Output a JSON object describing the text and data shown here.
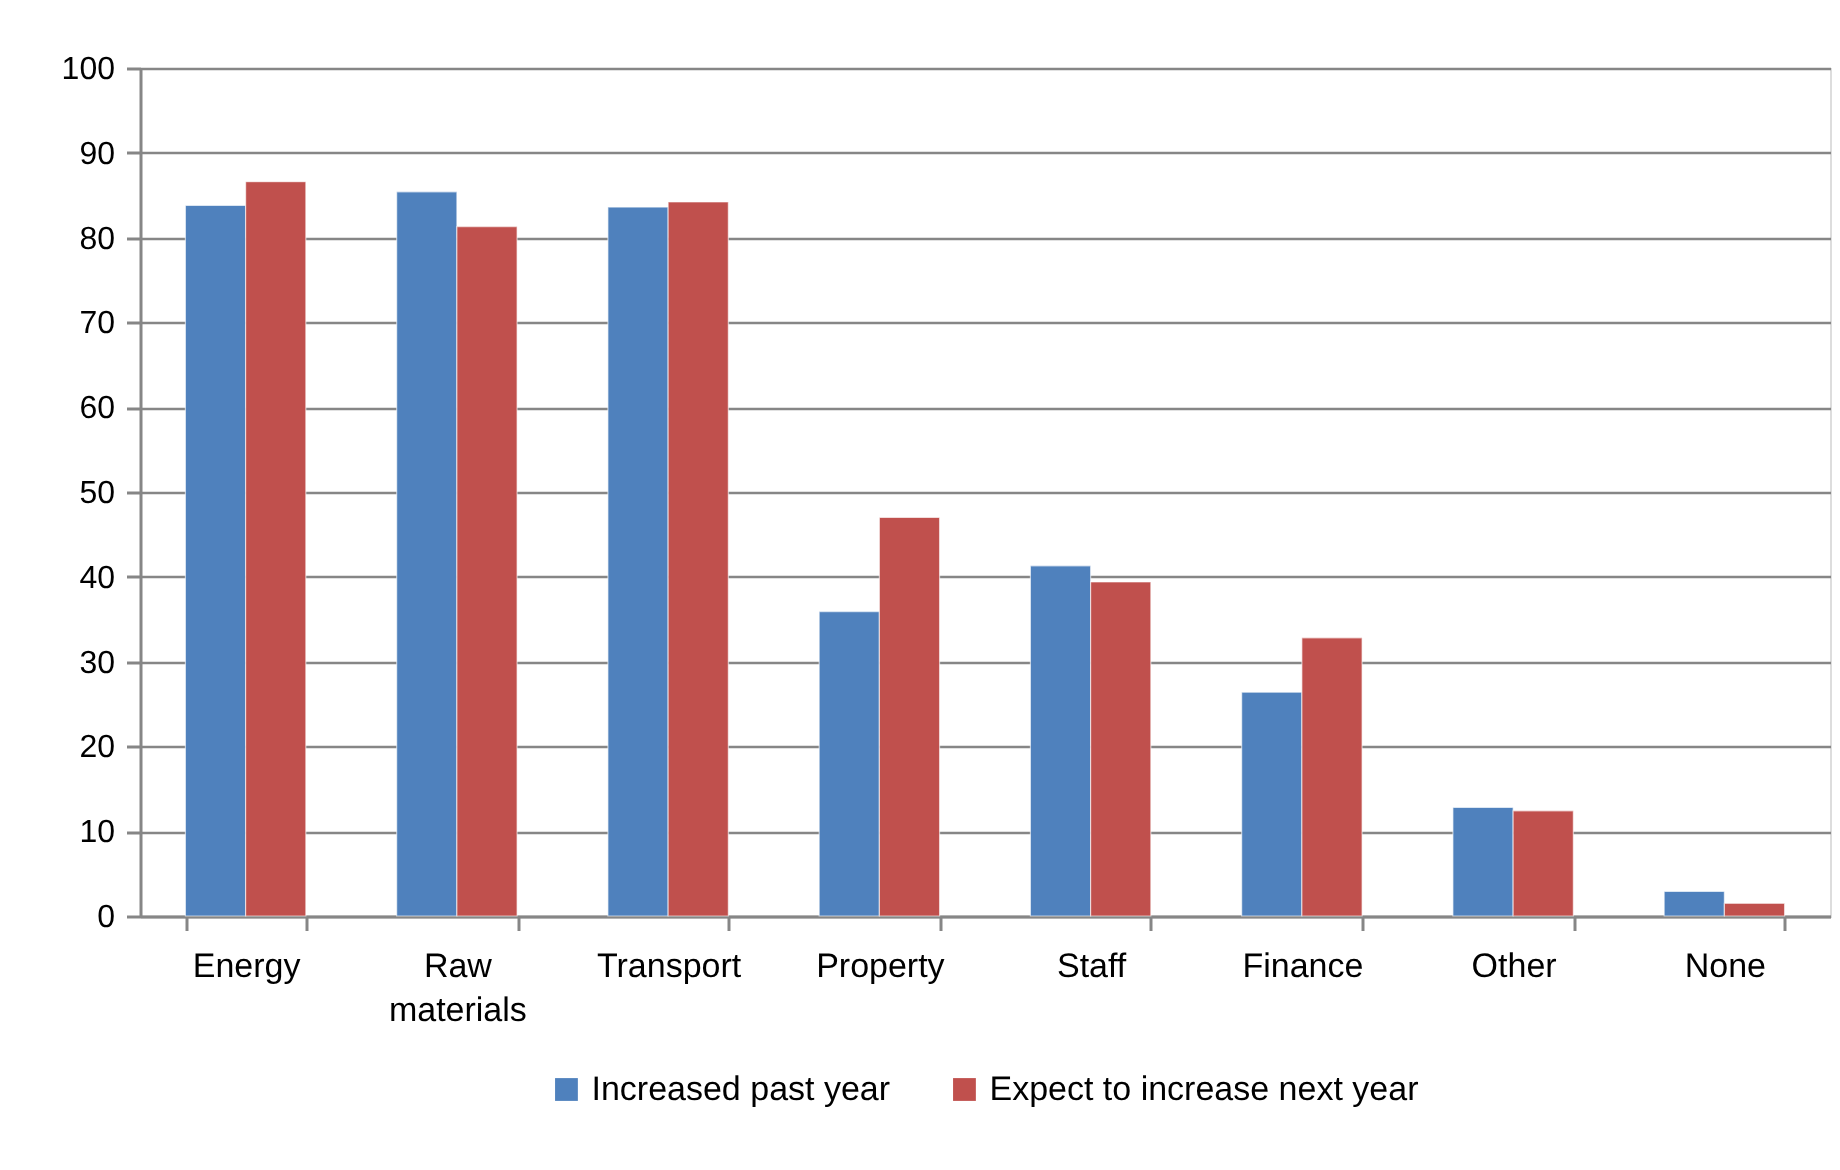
{
  "chart_data": {
    "type": "bar",
    "categories": [
      "Energy",
      "Raw materials",
      "Transport",
      "Property",
      "Staff",
      "Finance",
      "Other",
      "None"
    ],
    "series": [
      {
        "name": "Increased past year",
        "color": "#4f81bd",
        "values": [
          83.8,
          85.4,
          83.6,
          35.9,
          41.3,
          26.4,
          12.8,
          2.9
        ]
      },
      {
        "name": "Expect to increase next year",
        "color": "#c0504d",
        "values": [
          86.6,
          81.3,
          84.2,
          47.0,
          39.4,
          32.8,
          12.4,
          1.5
        ]
      }
    ],
    "ylim": [
      0,
      100
    ],
    "yticks": [
      0,
      10,
      20,
      30,
      40,
      50,
      60,
      70,
      80,
      90,
      100
    ],
    "grid": "y",
    "legend": "bottom"
  }
}
